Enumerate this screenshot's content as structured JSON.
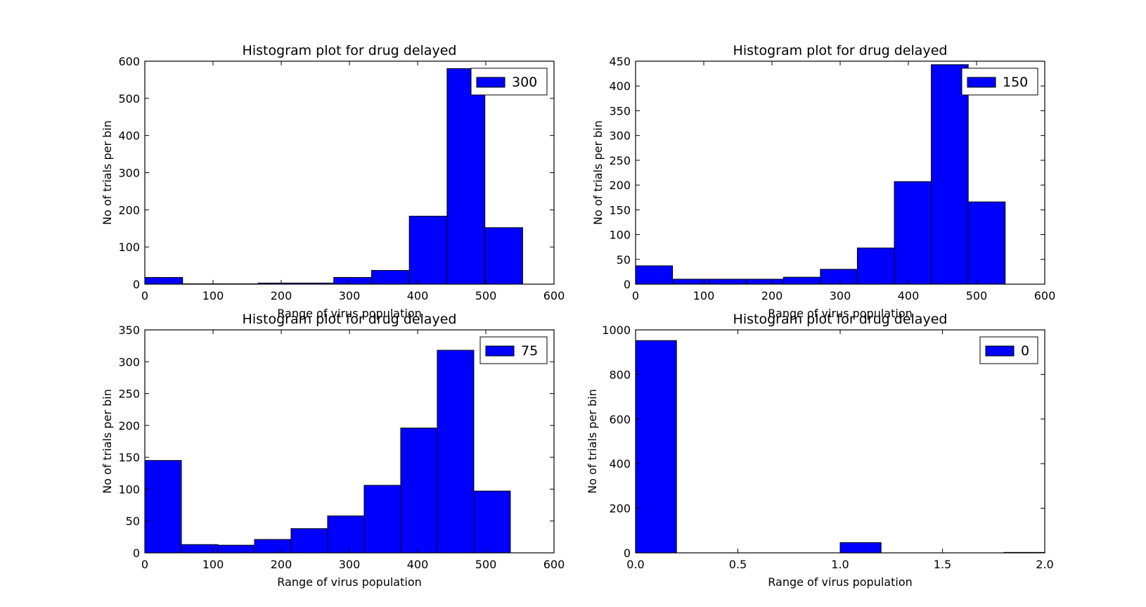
{
  "figure": {
    "background": "#ffffff",
    "bar_color": "#0000ff",
    "edge_color": "#000000"
  },
  "chart_data": [
    {
      "type": "bar",
      "title": "Histogram plot for drug delayed",
      "xlabel": "Range of virus population",
      "ylabel": "No of trials per bin",
      "xlim": [
        0,
        600
      ],
      "ylim": [
        0,
        600
      ],
      "xticks": [
        0,
        100,
        200,
        300,
        400,
        500,
        600
      ],
      "xtick_labels": [
        "0",
        "100",
        "200",
        "300",
        "400",
        "500",
        "600"
      ],
      "yticks": [
        0,
        100,
        200,
        300,
        400,
        500,
        600
      ],
      "ytick_labels": [
        "0",
        "100",
        "200",
        "300",
        "400",
        "500",
        "600"
      ],
      "legend": {
        "label": "300",
        "position": "top-right"
      },
      "bin_edges": [
        0,
        55.4,
        110.8,
        166.2,
        221.6,
        277,
        332.4,
        387.8,
        443.2,
        498.6,
        554
      ],
      "values": [
        18,
        1,
        1,
        3,
        3,
        18,
        37,
        183,
        580,
        152
      ]
    },
    {
      "type": "bar",
      "title": "Histogram plot for drug delayed",
      "xlabel": "Range of virus population",
      "ylabel": "No of trials per bin",
      "xlim": [
        0,
        600
      ],
      "ylim": [
        0,
        450
      ],
      "xticks": [
        0,
        100,
        200,
        300,
        400,
        500,
        600
      ],
      "xtick_labels": [
        "0",
        "100",
        "200",
        "300",
        "400",
        "500",
        "600"
      ],
      "yticks": [
        0,
        50,
        100,
        150,
        200,
        250,
        300,
        350,
        400,
        450
      ],
      "ytick_labels": [
        "0",
        "50",
        "100",
        "150",
        "200",
        "250",
        "300",
        "350",
        "400",
        "450"
      ],
      "legend": {
        "label": "150",
        "position": "top-right"
      },
      "bin_edges": [
        0,
        54.2,
        108.4,
        162.6,
        216.8,
        271,
        325.2,
        379.4,
        433.6,
        487.8,
        542
      ],
      "values": [
        37,
        10,
        10,
        10,
        14,
        30,
        73,
        207,
        443,
        166
      ]
    },
    {
      "type": "bar",
      "title": "Histogram plot for drug delayed",
      "xlabel": "Range of virus population",
      "ylabel": "No of trials per bin",
      "xlim": [
        0,
        600
      ],
      "ylim": [
        0,
        350
      ],
      "xticks": [
        0,
        100,
        200,
        300,
        400,
        500,
        600
      ],
      "xtick_labels": [
        "0",
        "100",
        "200",
        "300",
        "400",
        "500",
        "600"
      ],
      "yticks": [
        0,
        50,
        100,
        150,
        200,
        250,
        300,
        350
      ],
      "ytick_labels": [
        "0",
        "50",
        "100",
        "150",
        "200",
        "250",
        "300",
        "350"
      ],
      "legend": {
        "label": "75",
        "position": "top-right"
      },
      "bin_edges": [
        0,
        53.6,
        107.2,
        160.8,
        214.4,
        268,
        321.6,
        375.2,
        428.8,
        482.4,
        536
      ],
      "values": [
        145,
        13,
        12,
        21,
        38,
        58,
        106,
        196,
        318,
        97
      ]
    },
    {
      "type": "bar",
      "title": "Histogram plot for drug delayed",
      "xlabel": "Range of virus population",
      "ylabel": "No of trials per bin",
      "xlim": [
        0,
        2
      ],
      "ylim": [
        0,
        1000
      ],
      "xticks": [
        0,
        0.5,
        1,
        1.5,
        2
      ],
      "xtick_labels": [
        "0.0",
        "0.5",
        "1.0",
        "1.5",
        "2.0"
      ],
      "yticks": [
        0,
        200,
        400,
        600,
        800,
        1000
      ],
      "ytick_labels": [
        "0",
        "200",
        "400",
        "600",
        "800",
        "1000"
      ],
      "legend": {
        "label": "0",
        "position": "top-right"
      },
      "bin_edges": [
        0,
        0.2,
        0.4,
        0.6,
        0.8,
        1.0,
        1.2,
        1.4,
        1.6,
        1.8,
        2.0
      ],
      "values": [
        952,
        0,
        0,
        0,
        0,
        46,
        0,
        0,
        0,
        2
      ]
    }
  ]
}
